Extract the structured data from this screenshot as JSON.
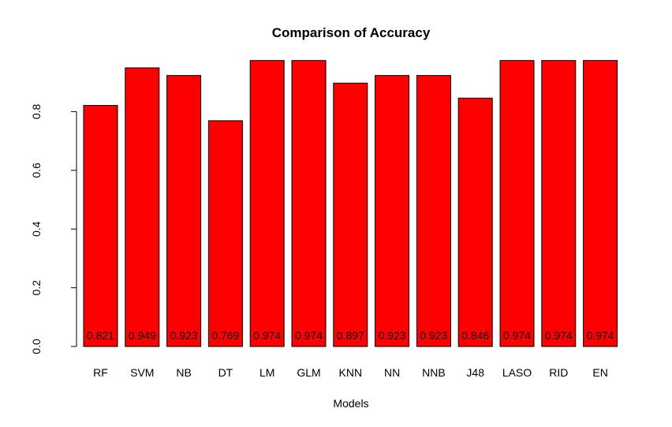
{
  "chart_data": {
    "type": "bar",
    "title": "Comparison of Accuracy",
    "xlabel": "Models",
    "ylabel": "",
    "categories": [
      "RF",
      "SVM",
      "NB",
      "DT",
      "LM",
      "GLM",
      "KNN",
      "NN",
      "NNB",
      "J48",
      "LASO",
      "RID",
      "EN"
    ],
    "values": [
      0.821,
      0.949,
      0.923,
      0.769,
      0.974,
      0.974,
      0.897,
      0.923,
      0.923,
      0.846,
      0.974,
      0.974,
      0.974
    ],
    "data_labels": [
      "0.821",
      "0.949",
      "0.923",
      "0.769",
      "0.974",
      "0.974",
      "0.897",
      "0.923",
      "0.923",
      "0.846",
      "0.974",
      "0.974",
      "0.974"
    ],
    "yticks": [
      0.0,
      0.2,
      0.4,
      0.6,
      0.8
    ],
    "ytick_labels": [
      "0.0",
      "0.2",
      "0.4",
      "0.6",
      "0.8"
    ],
    "ylim": [
      0,
      1
    ],
    "grid": false,
    "legend": "none",
    "colors": {
      "bar_fill": "#ff0000",
      "bar_stroke": "#000000",
      "axis": "#000000",
      "text": "#000000",
      "background": "#ffffff"
    }
  }
}
